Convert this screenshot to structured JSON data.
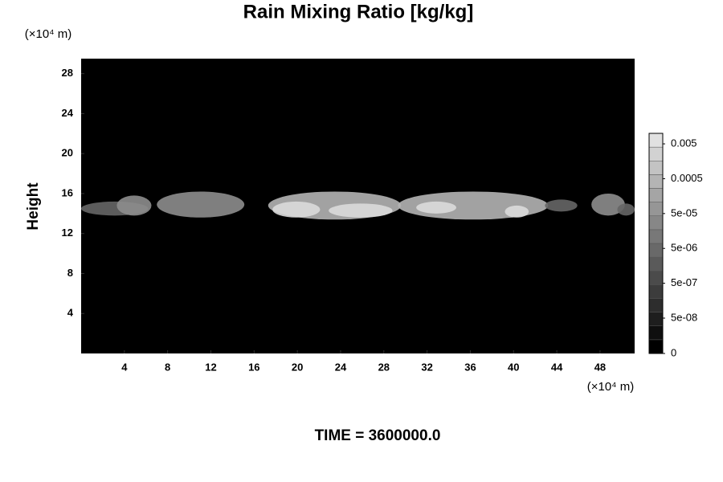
{
  "chart_data": {
    "type": "contour",
    "title": "Rain Mixing Ratio [kg/kg]",
    "y_label": "Height",
    "y_unit": "(×10⁴ m)",
    "x_unit": "(×10⁴ m)",
    "footer": "TIME = 3600000.0",
    "xlim": [
      0,
      51.2
    ],
    "ylim": [
      0,
      29.5
    ],
    "xticks": [
      4,
      8,
      12,
      16,
      20,
      24,
      28,
      32,
      36,
      40,
      44,
      48
    ],
    "yticks": [
      4,
      8,
      12,
      16,
      20,
      24,
      28
    ],
    "background": "#000000",
    "colorbar": {
      "log": true,
      "lim": [
        0,
        0.01
      ],
      "ticks": [
        0,
        {
          "value": 5e-08,
          "label": "5e-08"
        },
        {
          "value": 5e-07,
          "label": "5e-07"
        },
        {
          "value": 5e-06,
          "label": "5e-06"
        },
        {
          "value": 5e-05,
          "label": "5e-05"
        },
        0.0005,
        0.005
      ]
    },
    "cells": [
      {
        "x": [
          0,
          6.2
        ],
        "y": [
          13.8,
          15.2
        ],
        "value": 5e-06
      },
      {
        "x": [
          3.3,
          6.5
        ],
        "y": [
          13.8,
          15.8
        ],
        "value": 5e-05
      },
      {
        "x": [
          7,
          15.1
        ],
        "y": [
          13.6,
          16.2
        ],
        "value": 5e-05
      },
      {
        "x": [
          17.3,
          29.6
        ],
        "y": [
          13.4,
          16.2
        ],
        "value": 0.0005
      },
      {
        "x": [
          17.7,
          22.1
        ],
        "y": [
          13.6,
          15.2
        ],
        "value": 0.005
      },
      {
        "x": [
          22.9,
          28.8
        ],
        "y": [
          13.6,
          15
        ],
        "value": 0.005
      },
      {
        "x": [
          29.3,
          43.2
        ],
        "y": [
          13.4,
          16.2
        ],
        "value": 0.0005
      },
      {
        "x": [
          31,
          34.7
        ],
        "y": [
          14,
          15.2
        ],
        "value": 0.005
      },
      {
        "x": [
          39.2,
          41.4
        ],
        "y": [
          13.6,
          14.8
        ],
        "value": 0.005
      },
      {
        "x": [
          42.9,
          45.9
        ],
        "y": [
          14.2,
          15.4
        ],
        "value": 5e-06
      },
      {
        "x": [
          47.2,
          50.3
        ],
        "y": [
          13.8,
          16
        ],
        "value": 5e-05
      },
      {
        "x": [
          49.6,
          51.2
        ],
        "y": [
          13.8,
          15
        ],
        "value": 5e-06
      }
    ]
  }
}
